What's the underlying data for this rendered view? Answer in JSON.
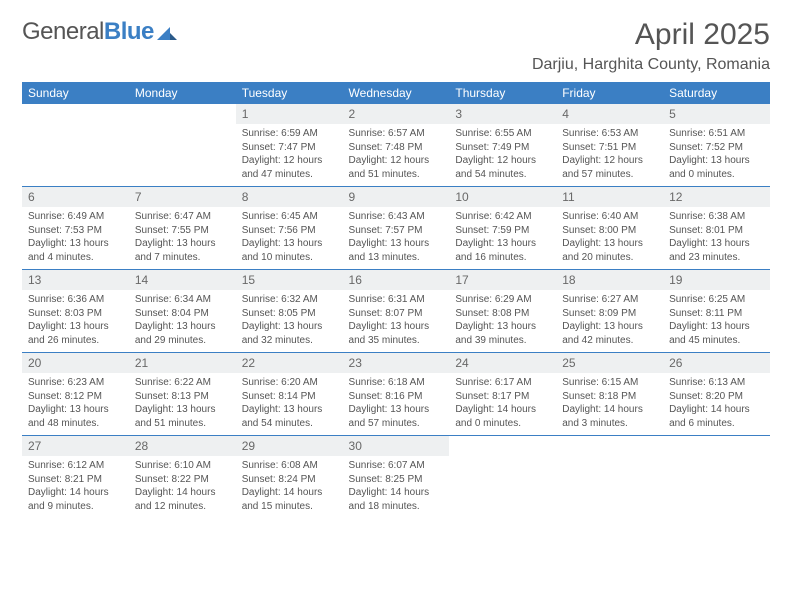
{
  "brand": {
    "word1": "General",
    "word2": "Blue"
  },
  "title": "April 2025",
  "location": "Darjiu, Harghita County, Romania",
  "colors": {
    "header_bg": "#3b7fc4",
    "header_text": "#ffffff",
    "daynum_bg": "#eef0f1",
    "text": "#555555",
    "row_border": "#3b7fc4"
  },
  "weekdays": [
    "Sunday",
    "Monday",
    "Tuesday",
    "Wednesday",
    "Thursday",
    "Friday",
    "Saturday"
  ],
  "weeks": [
    [
      {
        "n": "",
        "sr": "",
        "ss": "",
        "dl": ""
      },
      {
        "n": "",
        "sr": "",
        "ss": "",
        "dl": ""
      },
      {
        "n": "1",
        "sr": "Sunrise: 6:59 AM",
        "ss": "Sunset: 7:47 PM",
        "dl": "Daylight: 12 hours and 47 minutes."
      },
      {
        "n": "2",
        "sr": "Sunrise: 6:57 AM",
        "ss": "Sunset: 7:48 PM",
        "dl": "Daylight: 12 hours and 51 minutes."
      },
      {
        "n": "3",
        "sr": "Sunrise: 6:55 AM",
        "ss": "Sunset: 7:49 PM",
        "dl": "Daylight: 12 hours and 54 minutes."
      },
      {
        "n": "4",
        "sr": "Sunrise: 6:53 AM",
        "ss": "Sunset: 7:51 PM",
        "dl": "Daylight: 12 hours and 57 minutes."
      },
      {
        "n": "5",
        "sr": "Sunrise: 6:51 AM",
        "ss": "Sunset: 7:52 PM",
        "dl": "Daylight: 13 hours and 0 minutes."
      }
    ],
    [
      {
        "n": "6",
        "sr": "Sunrise: 6:49 AM",
        "ss": "Sunset: 7:53 PM",
        "dl": "Daylight: 13 hours and 4 minutes."
      },
      {
        "n": "7",
        "sr": "Sunrise: 6:47 AM",
        "ss": "Sunset: 7:55 PM",
        "dl": "Daylight: 13 hours and 7 minutes."
      },
      {
        "n": "8",
        "sr": "Sunrise: 6:45 AM",
        "ss": "Sunset: 7:56 PM",
        "dl": "Daylight: 13 hours and 10 minutes."
      },
      {
        "n": "9",
        "sr": "Sunrise: 6:43 AM",
        "ss": "Sunset: 7:57 PM",
        "dl": "Daylight: 13 hours and 13 minutes."
      },
      {
        "n": "10",
        "sr": "Sunrise: 6:42 AM",
        "ss": "Sunset: 7:59 PM",
        "dl": "Daylight: 13 hours and 16 minutes."
      },
      {
        "n": "11",
        "sr": "Sunrise: 6:40 AM",
        "ss": "Sunset: 8:00 PM",
        "dl": "Daylight: 13 hours and 20 minutes."
      },
      {
        "n": "12",
        "sr": "Sunrise: 6:38 AM",
        "ss": "Sunset: 8:01 PM",
        "dl": "Daylight: 13 hours and 23 minutes."
      }
    ],
    [
      {
        "n": "13",
        "sr": "Sunrise: 6:36 AM",
        "ss": "Sunset: 8:03 PM",
        "dl": "Daylight: 13 hours and 26 minutes."
      },
      {
        "n": "14",
        "sr": "Sunrise: 6:34 AM",
        "ss": "Sunset: 8:04 PM",
        "dl": "Daylight: 13 hours and 29 minutes."
      },
      {
        "n": "15",
        "sr": "Sunrise: 6:32 AM",
        "ss": "Sunset: 8:05 PM",
        "dl": "Daylight: 13 hours and 32 minutes."
      },
      {
        "n": "16",
        "sr": "Sunrise: 6:31 AM",
        "ss": "Sunset: 8:07 PM",
        "dl": "Daylight: 13 hours and 35 minutes."
      },
      {
        "n": "17",
        "sr": "Sunrise: 6:29 AM",
        "ss": "Sunset: 8:08 PM",
        "dl": "Daylight: 13 hours and 39 minutes."
      },
      {
        "n": "18",
        "sr": "Sunrise: 6:27 AM",
        "ss": "Sunset: 8:09 PM",
        "dl": "Daylight: 13 hours and 42 minutes."
      },
      {
        "n": "19",
        "sr": "Sunrise: 6:25 AM",
        "ss": "Sunset: 8:11 PM",
        "dl": "Daylight: 13 hours and 45 minutes."
      }
    ],
    [
      {
        "n": "20",
        "sr": "Sunrise: 6:23 AM",
        "ss": "Sunset: 8:12 PM",
        "dl": "Daylight: 13 hours and 48 minutes."
      },
      {
        "n": "21",
        "sr": "Sunrise: 6:22 AM",
        "ss": "Sunset: 8:13 PM",
        "dl": "Daylight: 13 hours and 51 minutes."
      },
      {
        "n": "22",
        "sr": "Sunrise: 6:20 AM",
        "ss": "Sunset: 8:14 PM",
        "dl": "Daylight: 13 hours and 54 minutes."
      },
      {
        "n": "23",
        "sr": "Sunrise: 6:18 AM",
        "ss": "Sunset: 8:16 PM",
        "dl": "Daylight: 13 hours and 57 minutes."
      },
      {
        "n": "24",
        "sr": "Sunrise: 6:17 AM",
        "ss": "Sunset: 8:17 PM",
        "dl": "Daylight: 14 hours and 0 minutes."
      },
      {
        "n": "25",
        "sr": "Sunrise: 6:15 AM",
        "ss": "Sunset: 8:18 PM",
        "dl": "Daylight: 14 hours and 3 minutes."
      },
      {
        "n": "26",
        "sr": "Sunrise: 6:13 AM",
        "ss": "Sunset: 8:20 PM",
        "dl": "Daylight: 14 hours and 6 minutes."
      }
    ],
    [
      {
        "n": "27",
        "sr": "Sunrise: 6:12 AM",
        "ss": "Sunset: 8:21 PM",
        "dl": "Daylight: 14 hours and 9 minutes."
      },
      {
        "n": "28",
        "sr": "Sunrise: 6:10 AM",
        "ss": "Sunset: 8:22 PM",
        "dl": "Daylight: 14 hours and 12 minutes."
      },
      {
        "n": "29",
        "sr": "Sunrise: 6:08 AM",
        "ss": "Sunset: 8:24 PM",
        "dl": "Daylight: 14 hours and 15 minutes."
      },
      {
        "n": "30",
        "sr": "Sunrise: 6:07 AM",
        "ss": "Sunset: 8:25 PM",
        "dl": "Daylight: 14 hours and 18 minutes."
      },
      {
        "n": "",
        "sr": "",
        "ss": "",
        "dl": ""
      },
      {
        "n": "",
        "sr": "",
        "ss": "",
        "dl": ""
      },
      {
        "n": "",
        "sr": "",
        "ss": "",
        "dl": ""
      }
    ]
  ]
}
